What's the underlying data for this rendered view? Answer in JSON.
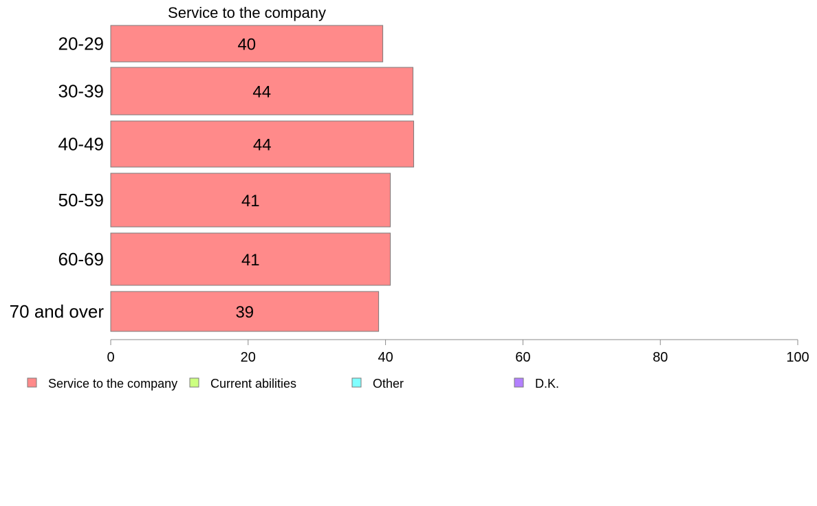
{
  "chart_data": {
    "type": "bar",
    "orientation": "horizontal",
    "series_title": "Service to the company",
    "categories": [
      "20-29",
      "30-39",
      "40-49",
      "50-59",
      "60-69",
      "70 and over"
    ],
    "series": [
      {
        "name": "Service to the company",
        "color": "#ff8a8a",
        "values": [
          39.6,
          44.0,
          44.1,
          40.7,
          40.7,
          39.0
        ],
        "labels": [
          "40",
          "44",
          "44",
          "41",
          "41",
          "39"
        ]
      }
    ],
    "xlim": [
      0,
      100
    ],
    "xticks": [
      0,
      20,
      40,
      60,
      80,
      100
    ],
    "grid": false,
    "legend_position": "bottom",
    "legend": [
      {
        "label": "Service to the company",
        "color": "#ff8a8a"
      },
      {
        "label": "Current abilities",
        "color": "#ccff80"
      },
      {
        "label": "Other",
        "color": "#80ffff"
      },
      {
        "label": "D.K.",
        "color": "#b380ff"
      }
    ]
  }
}
